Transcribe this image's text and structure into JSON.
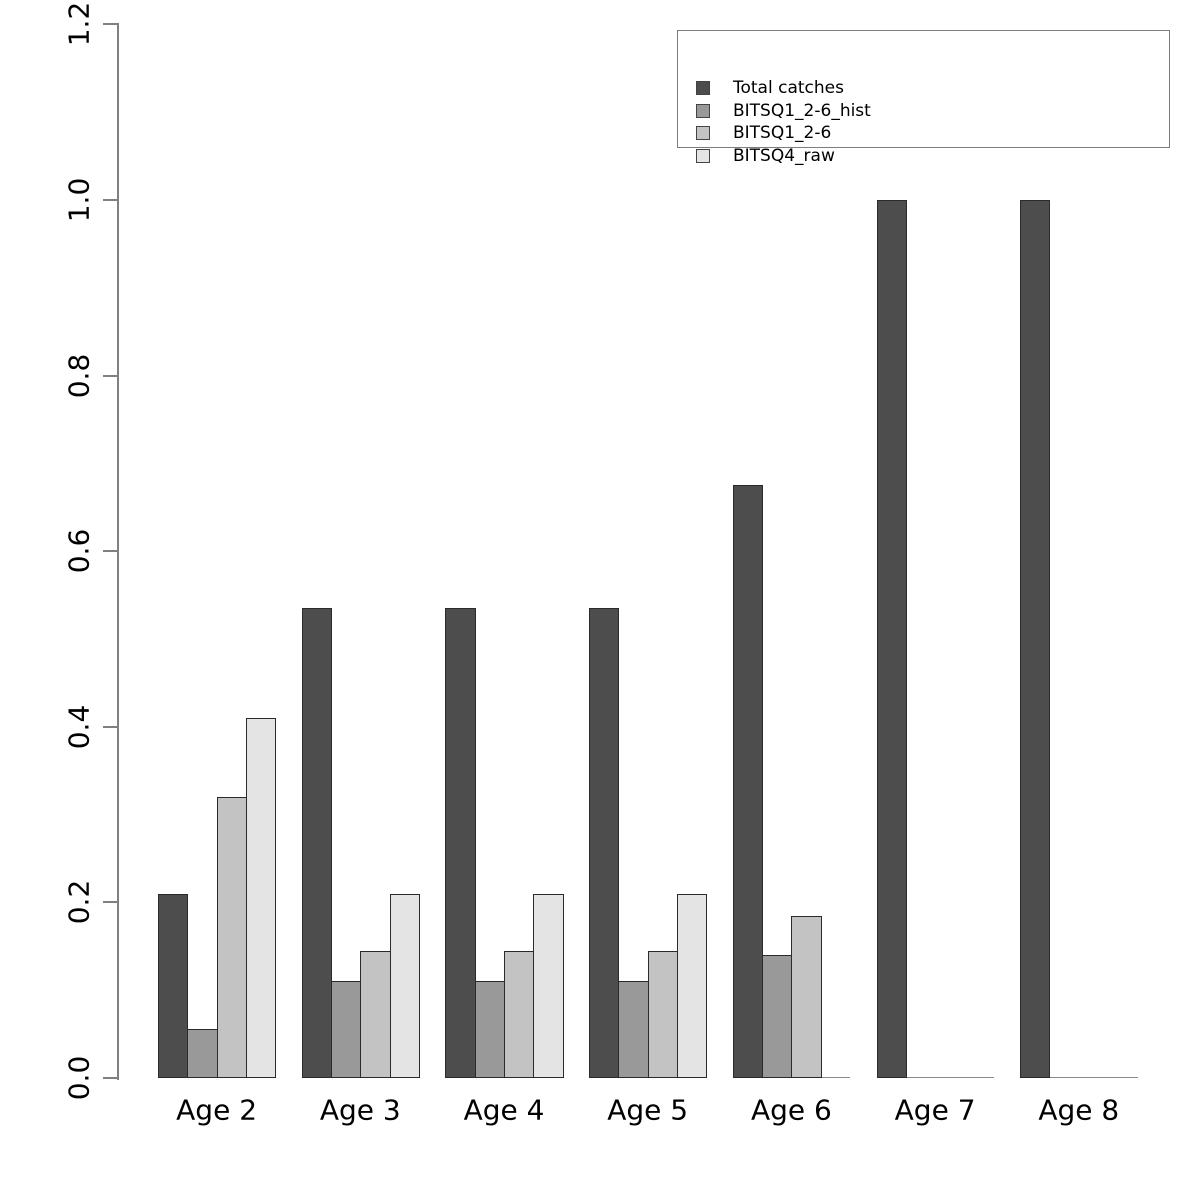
{
  "figure": {
    "background": "#ffffff"
  },
  "chart_data": {
    "type": "bar",
    "title": "",
    "xlabel": "",
    "ylabel": "",
    "categories": [
      "Age 2",
      "Age 3",
      "Age 4",
      "Age 5",
      "Age 6",
      "Age 7",
      "Age 8"
    ],
    "series": [
      {
        "name": "Total catches",
        "color": "#4d4d4d",
        "values": [
          0.21,
          0.535,
          0.535,
          0.535,
          0.675,
          1.0,
          1.0
        ]
      },
      {
        "name": "BITSQ1_2-6_hist",
        "color": "#999999",
        "values": [
          0.056,
          0.11,
          0.11,
          0.11,
          0.14,
          0,
          0
        ]
      },
      {
        "name": "BITSQ1_2-6",
        "color": "#c3c3c3",
        "values": [
          0.32,
          0.145,
          0.145,
          0.145,
          0.185,
          0,
          0
        ]
      },
      {
        "name": "BITSQ4_raw",
        "color": "#e4e4e4",
        "values": [
          0.41,
          0.21,
          0.21,
          0.21,
          0,
          0,
          0
        ]
      }
    ],
    "ylim": [
      0,
      1.2
    ],
    "ytick_values": [
      0.0,
      0.2,
      0.4,
      0.6,
      0.8,
      1.0,
      1.2
    ],
    "ytick_labels": [
      "0.0",
      "0.2",
      "0.4",
      "0.6",
      "0.8",
      "1.0",
      "1.2"
    ],
    "grid": false,
    "legend": {
      "position": "top-right",
      "entries": [
        "Total catches",
        "BITSQ1_2-6_hist",
        "BITSQ1_2-6",
        "BITSQ4_raw"
      ]
    },
    "colors": {
      "axis": "#808080",
      "bar_border": "#2b2b2b",
      "text": "#000000",
      "legend_border": "#7d7d7d"
    }
  }
}
